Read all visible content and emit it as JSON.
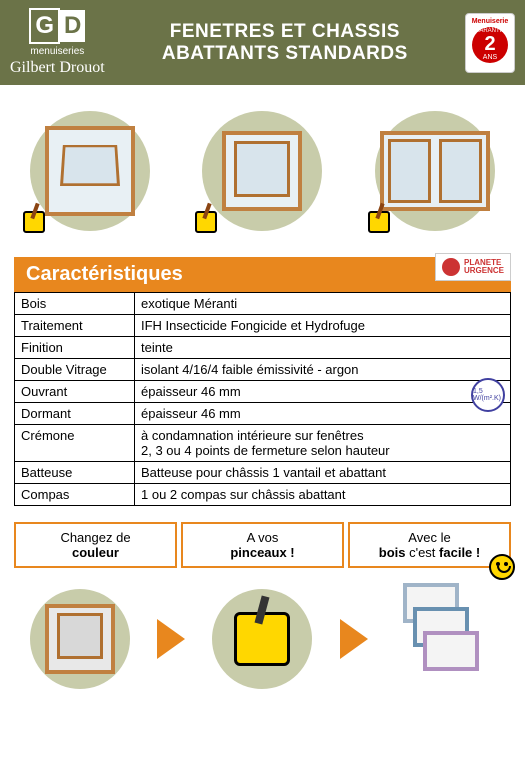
{
  "header": {
    "logo_g": "G",
    "logo_d": "D",
    "menuiseries": "menuiseries",
    "gilbert": "Gilbert Drouot",
    "title_line1": "FENETRES ET CHASSIS",
    "title_line2": "ABATTANTS STANDARDS",
    "warranty_label": "Menuiserie",
    "warranty_garantie": "GARANTIE",
    "warranty_years": "2",
    "warranty_ans": "ANS"
  },
  "section_title": "Caractéristiques",
  "planete": {
    "name": "PLANETE",
    "sub": "URGENCE"
  },
  "specs": [
    {
      "label": "Bois",
      "value": "exotique Méranti"
    },
    {
      "label": "Traitement",
      "value": "IFH Insecticide Fongicide et Hydrofuge"
    },
    {
      "label": "Finition",
      "value": "teinte"
    },
    {
      "label": "Double Vitrage",
      "value": "isolant 4/16/4 faible émissivité - argon"
    },
    {
      "label": "Ouvrant",
      "value": "épaisseur 46 mm"
    },
    {
      "label": "Dormant",
      "value": "épaisseur 46 mm"
    },
    {
      "label": "Crémone",
      "value": "à condamnation intérieure sur fenêtres\n2, 3 ou 4 points de fermeture selon hauteur"
    },
    {
      "label": "Batteuse",
      "value": "Batteuse pour châssis 1 vantail et abattant"
    },
    {
      "label": "Compas",
      "value": "1 ou 2 compas sur châssis abattant"
    }
  ],
  "badge_wg": "1,5 W/(m².K)",
  "bottom": {
    "box1_a": "Changez de",
    "box1_b": "couleur",
    "box2_a": "A vos",
    "box2_b": "pinceaux !",
    "box3_a": "Avec le",
    "box3_b1": "bois",
    "box3_b2": " c'est ",
    "box3_b3": "facile !"
  },
  "colors": {
    "header_bg": "#6b7348",
    "accent": "#e8871e",
    "circle_bg": "#c8ccaa",
    "wood": "#c08040",
    "wood_dark": "#b07030",
    "glass": "#d8e4ec",
    "warranty_red": "#cc0000",
    "yellow": "#ffd700"
  }
}
